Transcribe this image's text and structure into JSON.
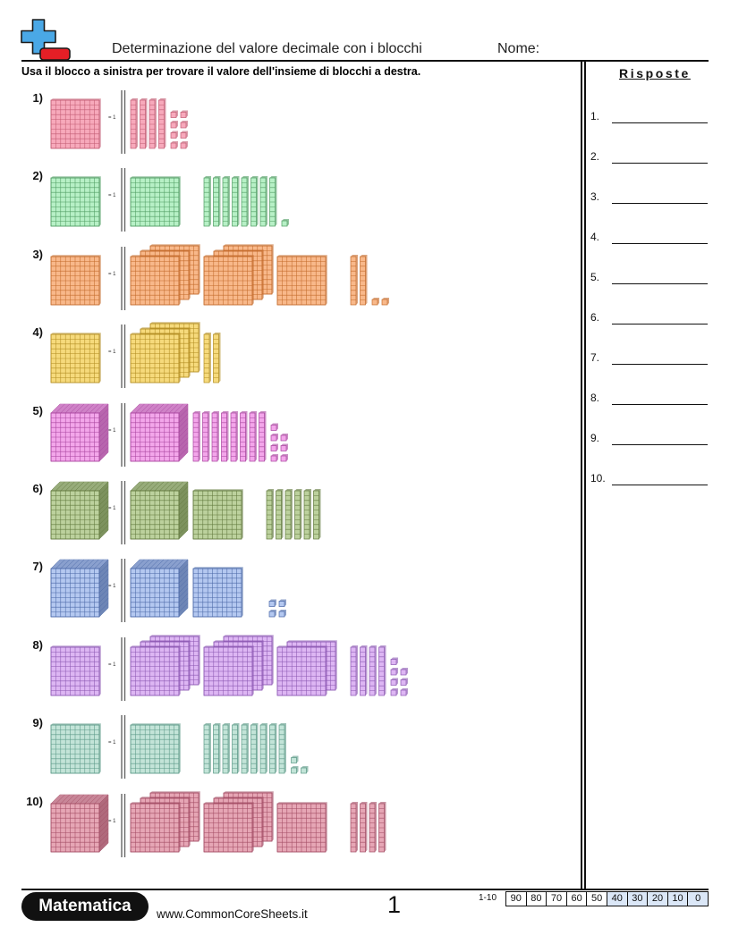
{
  "header": {
    "logo": {
      "icon": "plus-minus-icon",
      "plus_color": "#4aa8e6",
      "minus_color": "#e41f26"
    },
    "title": "Determinazione del valore decimale con i blocchi",
    "name_label": "Nome:"
  },
  "instructions": "Usa il blocco a sinistra per trovare il valore dell'insieme di blocchi a destra.",
  "answers": {
    "title": "Risposte",
    "items": [
      "1.",
      "2.",
      "3.",
      "4.",
      "5.",
      "6.",
      "7.",
      "8.",
      "9.",
      "10."
    ]
  },
  "problems": [
    {
      "label": "1)",
      "unit_label": "= 1",
      "reference": "flat",
      "color": {
        "fill": "#f7a9bb",
        "line": "#c25b73"
      },
      "blocks": {
        "cubes": 0,
        "flat_stacks": [],
        "rods": 4,
        "units": 8
      }
    },
    {
      "label": "2)",
      "unit_label": "= 1",
      "reference": "flat",
      "color": {
        "fill": "#b7f0c6",
        "line": "#4f9c62"
      },
      "blocks": {
        "cubes": 0,
        "flat_stacks": [
          1
        ],
        "rods": 8,
        "units": 1
      }
    },
    {
      "label": "3)",
      "unit_label": "= 1",
      "reference": "flat",
      "color": {
        "fill": "#f8b88a",
        "line": "#c46b2c"
      },
      "blocks": {
        "cubes": 0,
        "flat_stacks": [
          3,
          3,
          1
        ],
        "rods": 2,
        "units": 2
      }
    },
    {
      "label": "4)",
      "unit_label": "= 1",
      "reference": "flat",
      "color": {
        "fill": "#f6da7c",
        "line": "#b38d22"
      },
      "blocks": {
        "cubes": 0,
        "flat_stacks": [
          3
        ],
        "rods": 2,
        "units": 0
      }
    },
    {
      "label": "5)",
      "unit_label": "= 1",
      "reference": "cube",
      "color": {
        "fill": "#f3a6ea",
        "line": "#a8449e"
      },
      "blocks": {
        "cubes": 1,
        "flat_stacks": [],
        "rods": 8,
        "units": 7
      }
    },
    {
      "label": "6)",
      "unit_label": "= 1",
      "reference": "cube",
      "color": {
        "fill": "#bcd19d",
        "line": "#61793d"
      },
      "blocks": {
        "cubes": 1,
        "flat_stacks": [
          1
        ],
        "rods": 6,
        "units": 0
      }
    },
    {
      "label": "7)",
      "unit_label": "= 1",
      "reference": "cube",
      "color": {
        "fill": "#b4c8f0",
        "line": "#4b69a8"
      },
      "blocks": {
        "cubes": 1,
        "flat_stacks": [
          1
        ],
        "rods": 0,
        "units": 4
      }
    },
    {
      "label": "8)",
      "unit_label": "= 1",
      "reference": "flat",
      "color": {
        "fill": "#ddb6f3",
        "line": "#8c58b3"
      },
      "blocks": {
        "cubes": 0,
        "flat_stacks": [
          3,
          3,
          2
        ],
        "rods": 4,
        "units": 7
      }
    },
    {
      "label": "9)",
      "unit_label": "= 1",
      "reference": "flat",
      "color": {
        "fill": "#c3e4d8",
        "line": "#5b9987"
      },
      "blocks": {
        "cubes": 0,
        "flat_stacks": [
          1
        ],
        "rods": 9,
        "units": 3
      }
    },
    {
      "label": "10)",
      "unit_label": "= 1",
      "reference": "cube",
      "color": {
        "fill": "#e6a6b5",
        "line": "#a34c64"
      },
      "blocks": {
        "cubes": 0,
        "flat_stacks": [
          3,
          3,
          1
        ],
        "rods": 4,
        "units": 0
      }
    }
  ],
  "footer": {
    "subject": "Matematica",
    "website": "www.CommonCoreSheets.it",
    "page_number": "1",
    "score_label": "1-10",
    "shade_color": "#dbe7f7",
    "scores": [
      {
        "value": "90",
        "shaded": false
      },
      {
        "value": "80",
        "shaded": false
      },
      {
        "value": "70",
        "shaded": false
      },
      {
        "value": "60",
        "shaded": false
      },
      {
        "value": "50",
        "shaded": false
      },
      {
        "value": "40",
        "shaded": true
      },
      {
        "value": "30",
        "shaded": true
      },
      {
        "value": "20",
        "shaded": true
      },
      {
        "value": "10",
        "shaded": true
      },
      {
        "value": "0",
        "shaded": true
      }
    ]
  }
}
